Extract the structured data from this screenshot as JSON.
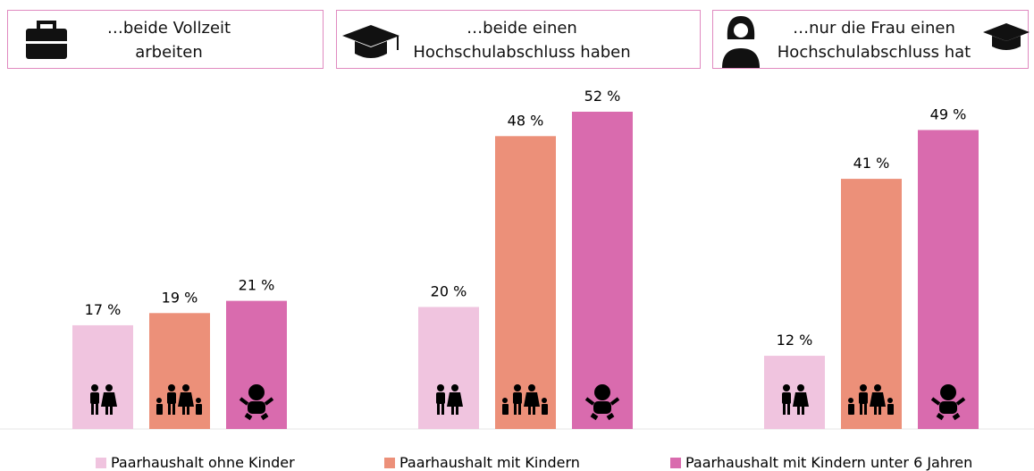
{
  "chart_data": {
    "type": "bar",
    "categories": [
      "…beide Vollzeit arbeiten",
      "…beide einen Hochschulabschluss haben",
      "…nur die Frau einen Hochschulabschluss hat"
    ],
    "series": [
      {
        "name": "Paarhaushalt ohne Kinder",
        "color": "#f0c4df",
        "values": [
          17,
          20,
          12
        ],
        "value_labels": [
          "17 %",
          "20 %",
          "12 %"
        ]
      },
      {
        "name": "Paarhaushalt mit Kindern",
        "color": "#ec9079",
        "values": [
          19,
          48,
          41
        ],
        "value_labels": [
          "19 %",
          "48 %",
          "41 %"
        ]
      },
      {
        "name": "Paarhaushalt mit Kindern unter 6 Jahren",
        "color": "#d96bae",
        "values": [
          21,
          52,
          49
        ],
        "value_labels": [
          "21 %",
          "52 %",
          "49 %"
        ]
      }
    ]
  }
}
